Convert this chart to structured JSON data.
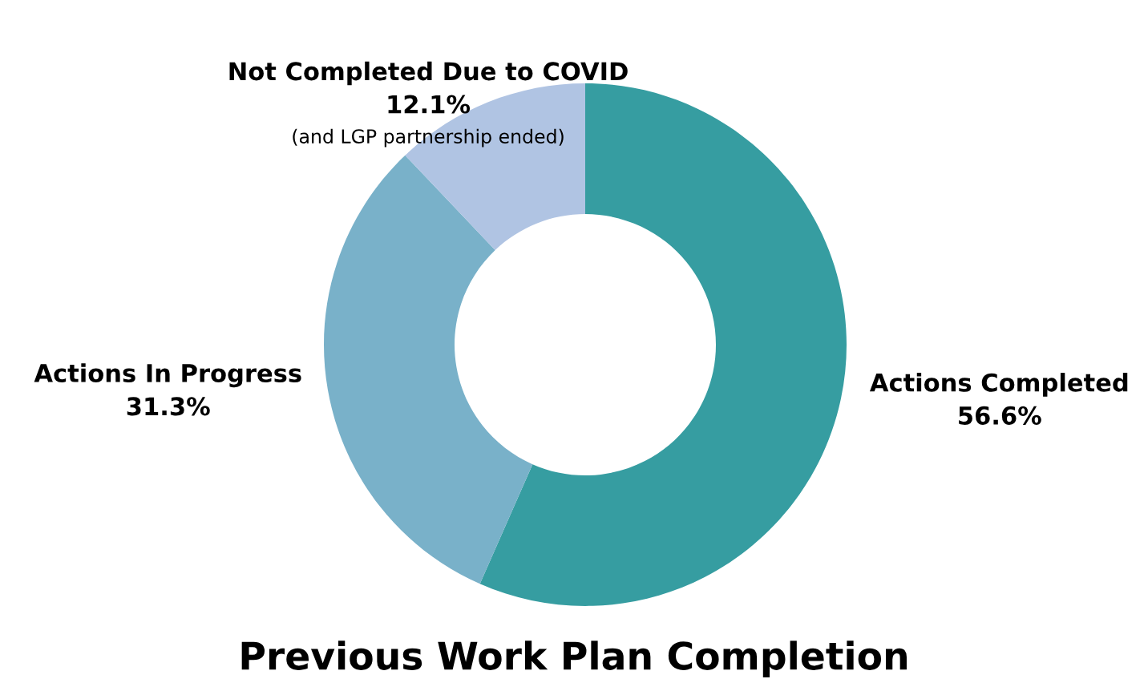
{
  "chart_data": {
    "type": "donut",
    "title": "Previous Work Plan Completion",
    "categories": [
      "Actions Completed",
      "Actions In Progress",
      "Not Completed Due to COVID"
    ],
    "values": [
      56.6,
      31.3,
      12.1
    ],
    "value_labels": [
      "56.6%",
      "31.3%",
      "12.1%"
    ],
    "colors": [
      "#369da1",
      "#79b1c9",
      "#b0c4e3"
    ],
    "annotations": [
      "(and LGP partnership ended)"
    ],
    "legend": false
  }
}
